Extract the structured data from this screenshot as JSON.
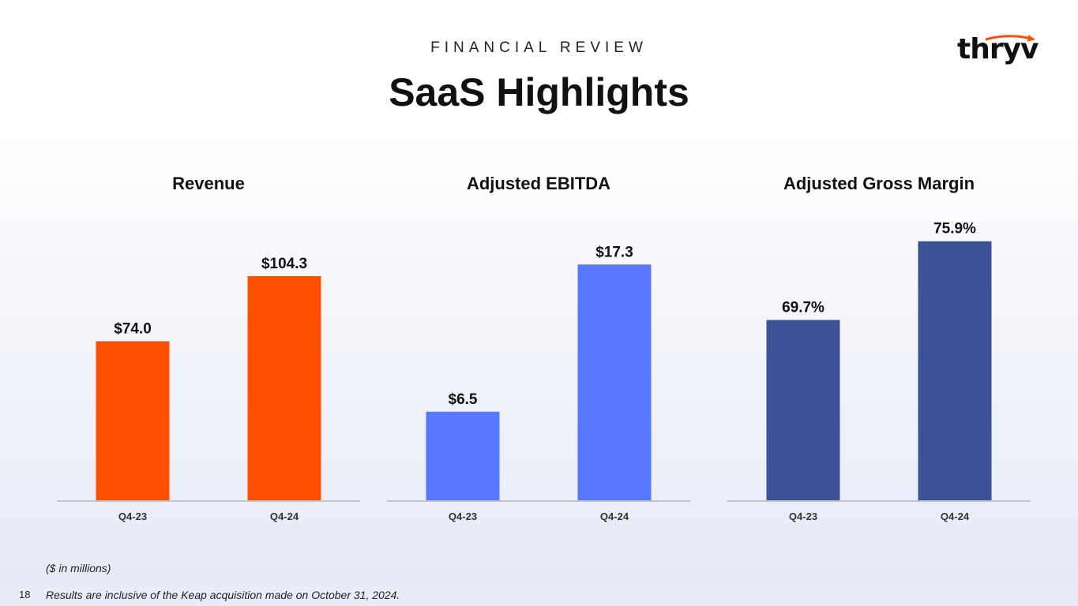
{
  "header": {
    "eyebrow": "FINANCIAL REVIEW",
    "title": "SaaS Highlights"
  },
  "logo": {
    "text": "thryv",
    "accent_color": "#ff5000"
  },
  "chart_data": [
    {
      "type": "bar",
      "title": "Revenue",
      "categories": [
        "Q4-23",
        "Q4-24"
      ],
      "values": [
        74.0,
        104.3
      ],
      "labels": [
        "$74.0",
        "$104.3"
      ],
      "ylim": [
        0,
        130
      ],
      "color": "#ff5000"
    },
    {
      "type": "bar",
      "title": "Adjusted EBITDA",
      "categories": [
        "Q4-23",
        "Q4-24"
      ],
      "values": [
        6.5,
        17.3
      ],
      "labels": [
        "$6.5",
        "$17.3"
      ],
      "ylim": [
        0,
        20.5
      ],
      "color": "#5578ff"
    },
    {
      "type": "bar",
      "title": "Adjusted Gross Margin",
      "categories": [
        "Q4-23",
        "Q4-24"
      ],
      "values": [
        69.7,
        75.9
      ],
      "labels": [
        "69.7%",
        "75.9%"
      ],
      "ylim": [
        55.5,
        77.5
      ],
      "color": "#3d5296"
    }
  ],
  "footer": {
    "units_note": "($ in millions)",
    "page_number": "18",
    "note": "Results are inclusive of the Keap acquisition made on October 31, 2024."
  }
}
